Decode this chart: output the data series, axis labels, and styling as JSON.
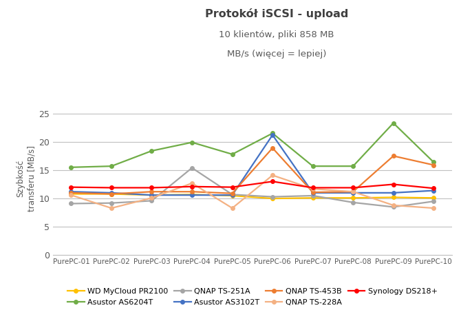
{
  "title": "Protokół iSCSI - upload",
  "subtitle1": "10 klientów, pliki 858 MB",
  "subtitle2": "MB/s (więcej = lepiej)",
  "ylabel": "Szybkość\ntransferu [MB/s]",
  "x_labels": [
    "PurePC-01",
    "PurePC-02",
    "PurePC-03",
    "PurePC-04",
    "PurePC-05",
    "PurePC-06",
    "PurePC-07",
    "PurePC-08",
    "PurePC-09",
    "PurePC-10"
  ],
  "ylim": [
    0,
    27
  ],
  "yticks": [
    0,
    5,
    10,
    15,
    20,
    25
  ],
  "series": [
    {
      "label": "WD MyCloud PR2100",
      "color": "#FFC000",
      "marker": "o",
      "values": [
        10.8,
        10.8,
        10.6,
        10.7,
        10.5,
        10.0,
        10.1,
        10.1,
        10.2,
        10.1
      ]
    },
    {
      "label": "Asustor AS6204T",
      "color": "#70AD47",
      "marker": "o",
      "values": [
        15.5,
        15.7,
        18.4,
        19.9,
        17.8,
        21.5,
        15.7,
        15.7,
        23.3,
        16.4
      ]
    },
    {
      "label": "QNAP TS-251A",
      "color": "#A5A5A5",
      "marker": "o",
      "values": [
        9.1,
        9.2,
        9.6,
        15.4,
        10.7,
        10.3,
        10.5,
        9.3,
        8.5,
        9.5
      ]
    },
    {
      "label": "Asustor AS3102T",
      "color": "#4472C4",
      "marker": "o",
      "values": [
        11.2,
        11.0,
        10.6,
        10.6,
        10.6,
        21.2,
        11.0,
        11.0,
        11.0,
        11.4
      ]
    },
    {
      "label": "QNAP TS-453B",
      "color": "#ED7D31",
      "marker": "o",
      "values": [
        11.0,
        10.8,
        11.2,
        11.2,
        10.9,
        18.9,
        11.1,
        11.2,
        17.5,
        15.9
      ]
    },
    {
      "label": "QNAP TS-228A",
      "color": "#F4B183",
      "marker": "o",
      "values": [
        10.6,
        8.3,
        10.1,
        12.7,
        8.3,
        14.1,
        11.7,
        11.2,
        8.8,
        8.3
      ]
    },
    {
      "label": "Synology DS218+",
      "color": "#FF0000",
      "marker": "o",
      "values": [
        12.0,
        11.9,
        11.9,
        12.1,
        12.0,
        13.0,
        11.9,
        11.9,
        12.5,
        11.8
      ]
    }
  ],
  "background_color": "#FFFFFF",
  "grid_color": "#C0C0C0",
  "title_color": "#404040",
  "subtitle_color": "#595959",
  "axis_label_color": "#595959",
  "tick_color": "#595959",
  "legend_order": [
    0,
    1,
    2,
    3,
    4,
    5,
    6
  ]
}
